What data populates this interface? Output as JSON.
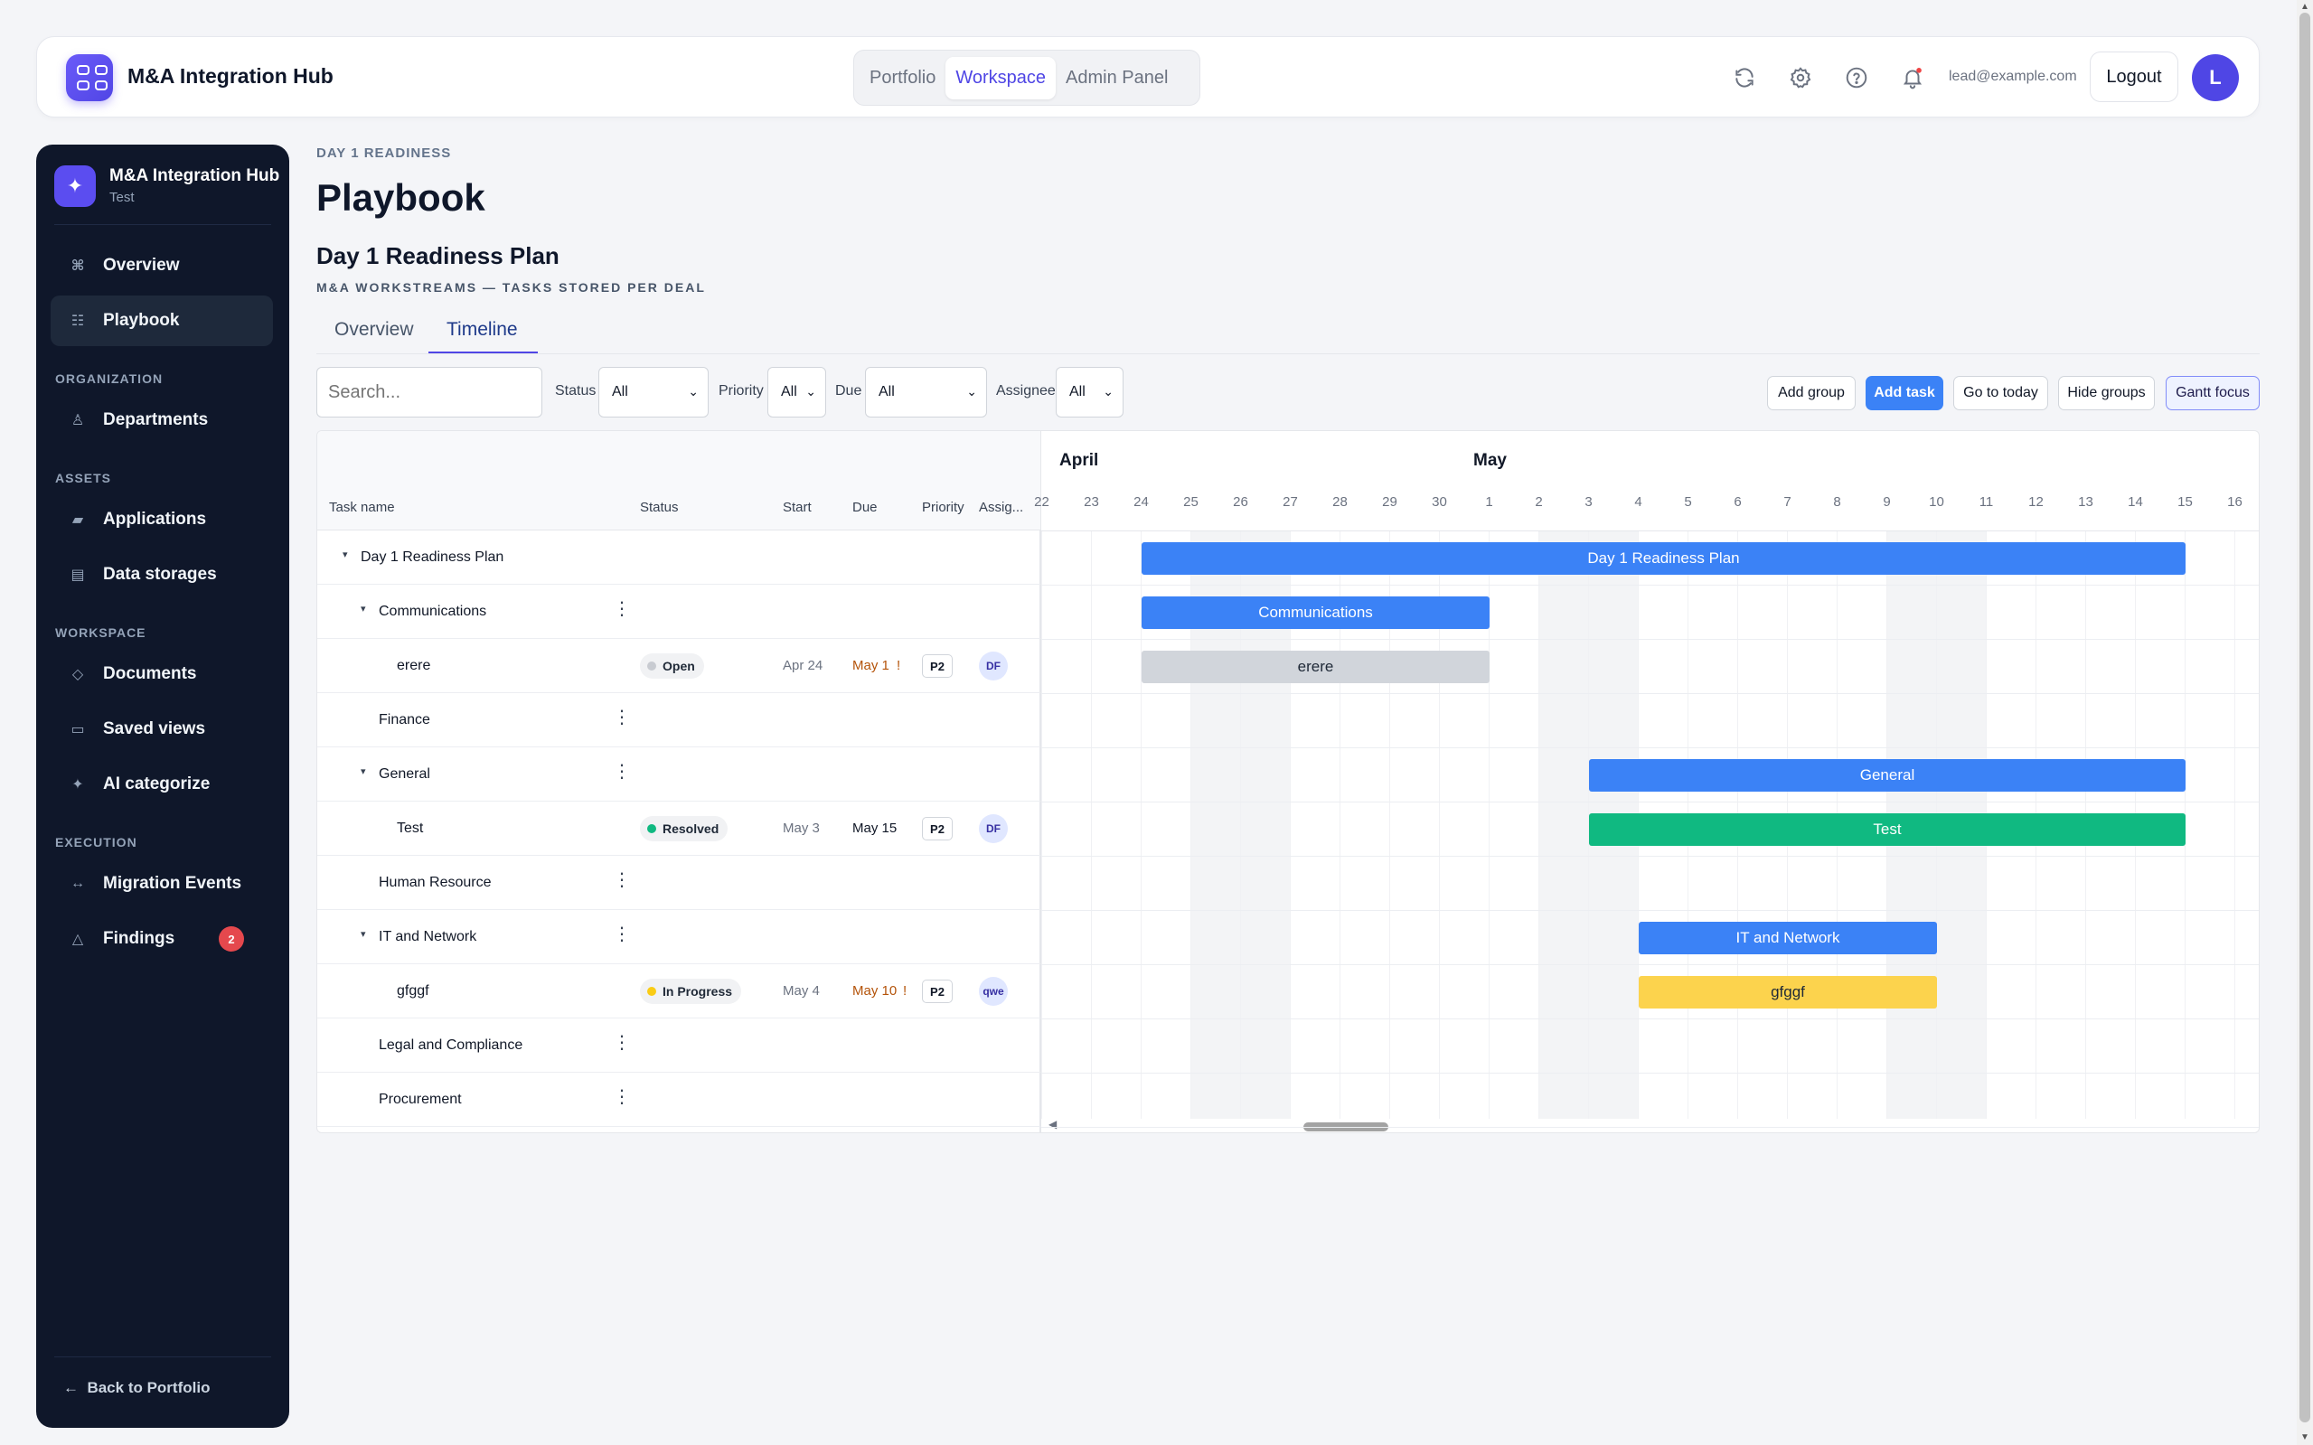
{
  "topbar": {
    "app_title": "M&A Integration Hub",
    "nav_tabs": [
      "Portfolio",
      "Workspace",
      "Admin Panel"
    ],
    "active_tab": "Workspace",
    "icons": [
      "refresh-icon",
      "settings-icon",
      "help-icon",
      "bell-icon"
    ],
    "user_email": "lead@example.com",
    "logout_label": "Logout",
    "avatar_initial": "L"
  },
  "sidebar": {
    "brand_title": "M&A Integration Hub",
    "brand_sub": "Test",
    "items": [
      {
        "label": "Overview",
        "icon": "command-icon"
      },
      {
        "label": "Playbook",
        "icon": "list-icon",
        "active": true
      },
      {
        "label": "Departments",
        "icon": "person-icon"
      },
      {
        "label": "Applications",
        "icon": "window-icon"
      },
      {
        "label": "Data storages",
        "icon": "database-icon"
      },
      {
        "label": "Documents",
        "icon": "diamond-icon"
      },
      {
        "label": "Saved views",
        "icon": "rectangle-icon"
      },
      {
        "label": "AI categorize",
        "icon": "sparkle-icon"
      },
      {
        "label": "Migration Events",
        "icon": "arrows-icon"
      },
      {
        "label": "Findings",
        "icon": "warning-icon",
        "badge": "2"
      }
    ],
    "sections": [
      "ORGANIZATION",
      "ASSETS",
      "WORKSPACE",
      "EXECUTION"
    ],
    "back_label": "Back to Portfolio"
  },
  "page": {
    "breadcrumb": "DAY 1 READINESS",
    "title": "Playbook",
    "plan_title": "Day 1 Readiness Plan",
    "plan_subtitle": "M&A WORKSTREAMS — TASKS STORED PER DEAL",
    "view_tabs": [
      "Overview",
      "Timeline"
    ],
    "active_view": "Timeline"
  },
  "filters": {
    "search_placeholder": "Search...",
    "status_label": "Status",
    "status_value": "All",
    "priority_label": "Priority",
    "priority_value": "All",
    "due_label": "Due",
    "due_value": "All",
    "assignee_label": "Assignee",
    "assignee_value": "All",
    "buttons": [
      "Add group",
      "Add task",
      "Go to today",
      "Hide groups",
      "Gantt focus"
    ]
  },
  "grid": {
    "columns": [
      "Task name",
      "Status",
      "Start",
      "Due",
      "Priority",
      "Assig..."
    ],
    "rows": [
      {
        "type": "plan",
        "name": "Day 1 Readiness Plan",
        "expanded": true
      },
      {
        "type": "group",
        "name": "Communications",
        "expanded": true
      },
      {
        "type": "task",
        "name": "erere",
        "status": "Open",
        "status_color": "#c8cbd1",
        "start": "Apr 24",
        "due": "May 1",
        "overdue": true,
        "priority": "P2",
        "assignee": "DF"
      },
      {
        "type": "group",
        "name": "Finance",
        "expanded": false
      },
      {
        "type": "group",
        "name": "General",
        "expanded": true
      },
      {
        "type": "task",
        "name": "Test",
        "status": "Resolved",
        "status_color": "#10b981",
        "start": "May 3",
        "due": "May 15",
        "overdue": false,
        "priority": "P2",
        "assignee": "DF"
      },
      {
        "type": "group",
        "name": "Human Resource",
        "expanded": false
      },
      {
        "type": "group",
        "name": "IT and Network",
        "expanded": true
      },
      {
        "type": "task",
        "name": "gfggf",
        "status": "In Progress",
        "status_color": "#facc15",
        "start": "May 4",
        "due": "May 10",
        "overdue": true,
        "priority": "P2",
        "assignee": "qwe"
      },
      {
        "type": "group",
        "name": "Legal and Compliance",
        "expanded": false
      },
      {
        "type": "group",
        "name": "Procurement",
        "expanded": false
      }
    ]
  },
  "timeline": {
    "months": [
      "April",
      "May"
    ],
    "days": [
      "22",
      "23",
      "24",
      "25",
      "26",
      "27",
      "28",
      "29",
      "30",
      "1",
      "2",
      "3",
      "4",
      "5",
      "6",
      "7",
      "8",
      "9",
      "10",
      "11",
      "12",
      "13",
      "14",
      "15",
      "16"
    ],
    "bars": [
      {
        "row": 0,
        "label": "Day 1 Readiness Plan",
        "start_day": "24",
        "end_day": "15",
        "color": "#3b82f6"
      },
      {
        "row": 1,
        "label": "Communications",
        "start_day": "24",
        "end_day": "1",
        "color": "#3b82f6"
      },
      {
        "row": 2,
        "label": "erere",
        "start_day": "24",
        "end_day": "1",
        "color": "#d1d5db"
      },
      {
        "row": 4,
        "label": "General",
        "start_day": "3",
        "end_day": "15",
        "color": "#3b82f6"
      },
      {
        "row": 5,
        "label": "Test",
        "start_day": "3",
        "end_day": "15",
        "color": "#10b981"
      },
      {
        "row": 7,
        "label": "IT and Network",
        "start_day": "4",
        "end_day": "10",
        "color": "#3b82f6"
      },
      {
        "row": 8,
        "label": "gfggf",
        "start_day": "4",
        "end_day": "10",
        "color": "#fcd34d"
      }
    ]
  },
  "colors": {
    "accent": "#4f46e5",
    "primary_button": "#3b82f6",
    "sidebar_bg": "#0f172a",
    "overdue": "#b45309"
  }
}
